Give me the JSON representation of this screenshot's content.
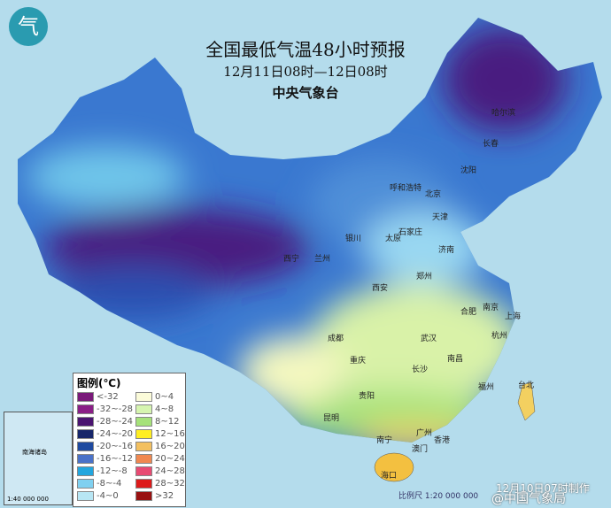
{
  "header": {
    "logo_glyph": "气",
    "title": "全国最低气温48小时预报",
    "period": "12月11日08时—12日08时",
    "issuer": "中央气象台"
  },
  "cities": [
    {
      "name": "哈尔滨"
    },
    {
      "name": "长春"
    },
    {
      "name": "沈阳"
    },
    {
      "name": "呼和浩特"
    },
    {
      "name": "北京"
    },
    {
      "name": "天津"
    },
    {
      "name": "石家庄"
    },
    {
      "name": "太原"
    },
    {
      "name": "济南"
    },
    {
      "name": "银川"
    },
    {
      "name": "兰州"
    },
    {
      "name": "西宁"
    },
    {
      "name": "西安"
    },
    {
      "name": "郑州"
    },
    {
      "name": "合肥"
    },
    {
      "name": "南京"
    },
    {
      "name": "上海"
    },
    {
      "name": "杭州"
    },
    {
      "name": "武汉"
    },
    {
      "name": "成都"
    },
    {
      "name": "重庆"
    },
    {
      "name": "长沙"
    },
    {
      "name": "南昌"
    },
    {
      "name": "贵阳"
    },
    {
      "name": "昆明"
    },
    {
      "name": "南宁"
    },
    {
      "name": "广州"
    },
    {
      "name": "香港"
    },
    {
      "name": "澳门"
    },
    {
      "name": "台北"
    },
    {
      "name": "海口"
    },
    {
      "name": "福州"
    }
  ],
  "legend": {
    "title": "图例(℃)",
    "items": [
      {
        "label": "<-32",
        "color": "#7a1a7a"
      },
      {
        "label": "0~4",
        "color": "#fbfbd9"
      },
      {
        "label": "-32~-28",
        "color": "#8a1e86"
      },
      {
        "label": "4~8",
        "color": "#d6f5b0"
      },
      {
        "label": "-28~-24",
        "color": "#4a1470"
      },
      {
        "label": "8~12",
        "color": "#a6e27a"
      },
      {
        "label": "-24~-20",
        "color": "#17266a"
      },
      {
        "label": "12~16",
        "color": "#ffee22"
      },
      {
        "label": "-20~-16",
        "color": "#1f4aa0"
      },
      {
        "label": "16~20",
        "color": "#f3c060"
      },
      {
        "label": "-16~-12",
        "color": "#4a72c8"
      },
      {
        "label": "20~24",
        "color": "#f08850"
      },
      {
        "label": "-12~-8",
        "color": "#22a6de"
      },
      {
        "label": "24~28",
        "color": "#e84a72"
      },
      {
        "label": "-8~-4",
        "color": "#7fd0f0"
      },
      {
        "label": "28~32",
        "color": "#dd1a1a"
      },
      {
        "label": "-4~0",
        "color": "#b8e6f4"
      },
      {
        "label": ">32",
        "color": "#991111"
      }
    ]
  },
  "inset": {
    "label": "南海诸岛",
    "scale": "1:40 000 000"
  },
  "footer": {
    "scale": "比例尺 1:20 000 000",
    "made": "12月10日07时制作",
    "watermark": "@中国气象局"
  }
}
